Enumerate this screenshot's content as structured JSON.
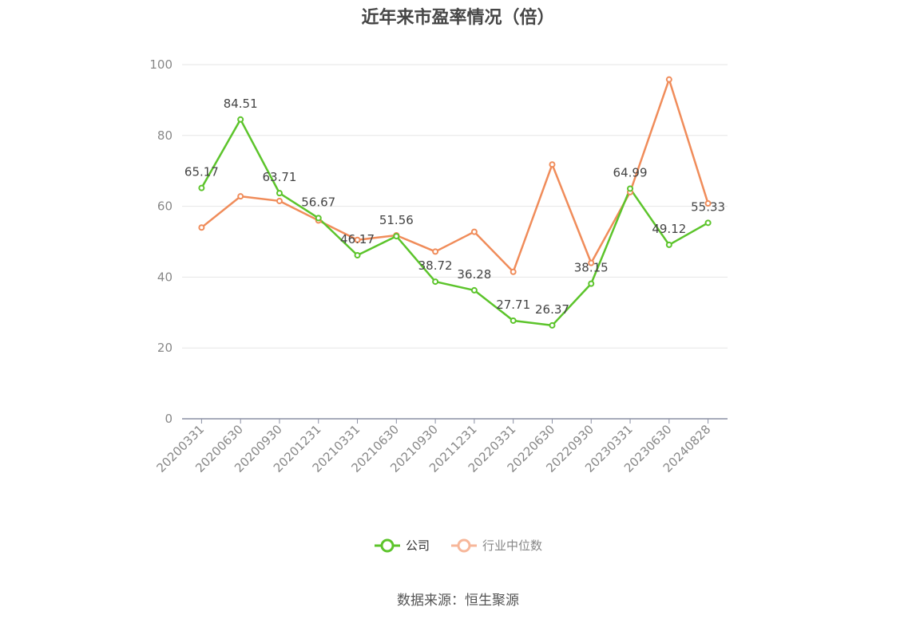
{
  "chart_data": {
    "type": "line",
    "title": "近年来市盈率情况（倍）",
    "categories": [
      "20200331",
      "20200630",
      "20200930",
      "20201231",
      "20210331",
      "20210630",
      "20210930",
      "20211231",
      "20220331",
      "20220630",
      "20220930",
      "20230331",
      "20230630",
      "20240828"
    ],
    "series": [
      {
        "name": "公司",
        "color": "#5cc42b",
        "values": [
          65.17,
          84.51,
          63.71,
          56.67,
          46.17,
          51.56,
          38.72,
          36.28,
          27.71,
          26.37,
          38.15,
          64.99,
          49.12,
          55.33
        ],
        "show_labels": true
      },
      {
        "name": "行业中位数",
        "color": "#f08c5a",
        "values": [
          54.0,
          62.8,
          61.5,
          56.0,
          50.5,
          51.8,
          47.2,
          52.8,
          41.5,
          71.8,
          44.0,
          64.0,
          95.8,
          60.8
        ],
        "show_labels": false
      }
    ],
    "ylim": [
      0,
      100
    ],
    "yticks": [
      0,
      20,
      40,
      60,
      80,
      100
    ],
    "grid": true,
    "legend_position": "bottom"
  },
  "legend": {
    "company": "公司",
    "industry": "行业中位数"
  },
  "source_text": "数据来源：恒生聚源"
}
